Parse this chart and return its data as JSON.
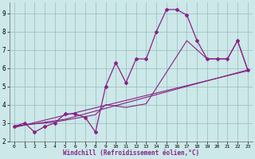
{
  "xlabel": "Windchill (Refroidissement éolien,°C)",
  "bg_color": "#cce8e8",
  "line_color": "#882288",
  "grid_color": "#99bbbb",
  "xlim": [
    -0.5,
    23.5
  ],
  "ylim": [
    2.0,
    9.6
  ],
  "xticks": [
    0,
    1,
    2,
    3,
    4,
    5,
    6,
    7,
    8,
    9,
    10,
    11,
    12,
    13,
    14,
    15,
    16,
    17,
    18,
    19,
    20,
    21,
    22,
    23
  ],
  "yticks": [
    2,
    3,
    4,
    5,
    6,
    7,
    8,
    9
  ],
  "line1_x": [
    0,
    1,
    2,
    3,
    4,
    5,
    6,
    7,
    8,
    9,
    10,
    11,
    12,
    13,
    14,
    15,
    16,
    17,
    18,
    19,
    20,
    21,
    22,
    23
  ],
  "line1_y": [
    2.8,
    3.0,
    2.5,
    2.8,
    3.0,
    3.5,
    3.5,
    3.3,
    2.5,
    5.0,
    6.3,
    5.2,
    6.5,
    6.5,
    8.0,
    9.2,
    9.2,
    8.9,
    7.5,
    6.5,
    6.5,
    6.5,
    7.5,
    5.9
  ],
  "line2_x": [
    0,
    5,
    23
  ],
  "line2_y": [
    2.8,
    3.2,
    5.9
  ],
  "line3_x": [
    0,
    23
  ],
  "line3_y": [
    2.75,
    5.85
  ],
  "line4_x": [
    0,
    4,
    5,
    8,
    9,
    11,
    13,
    17,
    19,
    21,
    22,
    23
  ],
  "line4_y": [
    2.85,
    3.05,
    3.15,
    3.45,
    4.0,
    3.85,
    4.05,
    7.5,
    6.5,
    6.5,
    7.5,
    5.9
  ]
}
